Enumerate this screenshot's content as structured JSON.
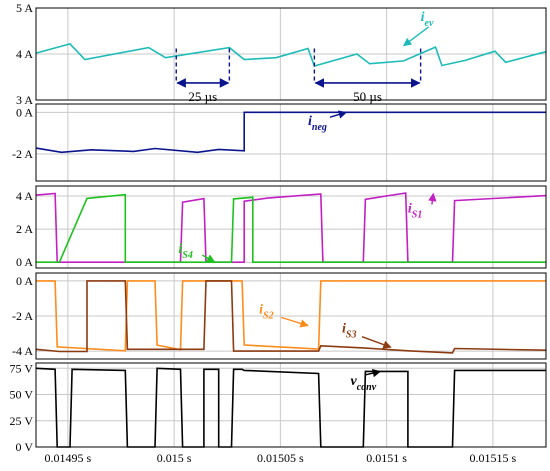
{
  "chart_data": {
    "type": "line",
    "title": "",
    "x_ticks": [
      "0.01495 s",
      "0.015 s",
      "0.01505 s",
      "0.0151 s",
      "0.01515 s"
    ],
    "x_tick_values": [
      0.01495,
      0.015,
      0.01505,
      0.0151,
      0.01515
    ],
    "xlim": [
      0.014935,
      0.015175
    ],
    "grid": true,
    "panels": [
      {
        "ylim": [
          3,
          5
        ],
        "y_ticks": [
          {
            "v": 5,
            "label": "5 A"
          },
          {
            "v": 4,
            "label": "4 A"
          },
          {
            "v": 3,
            "label": "3 A"
          }
        ],
        "series": [
          {
            "name": "i",
            "sub": "ev",
            "color": "#1dbcb8",
            "x": [
              0.014935,
              0.014951,
              0.014958,
              0.014988,
              0.014996,
              0.015026,
              0.015033,
              0.015048,
              0.015063,
              0.015066,
              0.015086,
              0.015092,
              0.015108,
              0.015123,
              0.015126,
              0.015137,
              0.015151,
              0.015156,
              0.015175
            ],
            "y": [
              4.02,
              4.22,
              3.88,
              4.14,
              3.92,
              4.14,
              3.88,
              3.92,
              4.12,
              3.74,
              4.0,
              3.79,
              3.85,
              4.15,
              3.75,
              3.86,
              4.06,
              3.82,
              4.05
            ]
          }
        ],
        "labels": [
          {
            "main": "i",
            "sub": "ev",
            "x": 0.015116,
            "y": 4.72
          }
        ],
        "intervals": [
          {
            "label": "25 µs",
            "x0": 0.015001,
            "x1": 0.015026,
            "y": 3.37
          },
          {
            "label": "50 µs",
            "x0": 0.015066,
            "x1": 0.015116,
            "y": 3.37
          }
        ]
      },
      {
        "ylim": [
          -3.3,
          0.4
        ],
        "y_ticks": [
          {
            "v": 0,
            "label": "0 A"
          },
          {
            "v": -2,
            "label": "-2 A"
          }
        ],
        "series": [
          {
            "name": "i",
            "sub": "neg",
            "color": "#0a148c",
            "x": [
              0.014935,
              0.014947,
              0.014961,
              0.014981,
              0.014991,
              0.015011,
              0.015021,
              0.015033,
              0.015033,
              0.015175
            ],
            "y": [
              -1.72,
              -1.92,
              -1.8,
              -1.88,
              -1.74,
              -1.92,
              -1.78,
              -1.85,
              0.0,
              0.0
            ]
          }
        ],
        "labels": [
          {
            "main": "i",
            "sub": "neg",
            "x": 0.015063,
            "y": -0.62
          }
        ]
      },
      {
        "ylim": [
          -0.35,
          4.6
        ],
        "y_ticks": [
          {
            "v": 4,
            "label": "4 A"
          },
          {
            "v": 2,
            "label": "2 A"
          },
          {
            "v": 0,
            "label": "0 A"
          }
        ],
        "series": [
          {
            "name": "i",
            "sub": "S1",
            "color": "#c21fc4",
            "x": [
              0.014935,
              0.014944,
              0.014945,
              0.015003,
              0.015003,
              0.015004,
              0.015014,
              0.015015,
              0.015027,
              0.015027,
              0.015033,
              0.015033,
              0.015044,
              0.015069,
              0.01507,
              0.015089,
              0.01509,
              0.015109,
              0.01511,
              0.015131,
              0.015131,
              0.015132,
              0.015175
            ],
            "y": [
              4.05,
              4.15,
              0,
              0,
              0,
              3.62,
              3.84,
              0,
              0,
              0,
              0,
              3.68,
              3.87,
              4.12,
              0,
              0,
              3.8,
              4.18,
              0,
              0,
              0,
              3.72,
              4.02
            ]
          },
          {
            "name": "i",
            "sub": "S4",
            "color": "#1ec21e",
            "x": [
              0.014935,
              0.014945,
              0.014946,
              0.014959,
              0.014977,
              0.014977,
              0.015027,
              0.015028,
              0.015037,
              0.015037,
              0.015175
            ],
            "y": [
              0,
              0,
              0,
              3.85,
              4.08,
              0,
              0,
              3.82,
              3.92,
              0,
              0
            ]
          }
        ],
        "labels": [
          {
            "main": "i",
            "sub": "S1",
            "x": 0.01511,
            "y": 3.0
          },
          {
            "main": "i",
            "sub": "S4",
            "x": 0.015002,
            "y": 0.55
          }
        ]
      },
      {
        "ylim": [
          -4.45,
          0.45
        ],
        "y_ticks": [
          {
            "v": 0,
            "label": "0 A"
          },
          {
            "v": -2,
            "label": "-2 A"
          },
          {
            "v": -4,
            "label": "-4 A"
          }
        ],
        "series": [
          {
            "name": "i",
            "sub": "S2",
            "color": "#ff8c1a",
            "x": [
              0.014935,
              0.014944,
              0.014945,
              0.014977,
              0.014978,
              0.014991,
              0.014992,
              0.015003,
              0.015004,
              0.015014,
              0.015014,
              0.015027,
              0.015028,
              0.015032,
              0.015033,
              0.015068,
              0.015069,
              0.01509,
              0.01509,
              0.01511,
              0.01511,
              0.015131,
              0.015132,
              0.015175
            ],
            "y": [
              0,
              0,
              -3.76,
              -3.98,
              0,
              0,
              -3.66,
              -3.92,
              0,
              0,
              0,
              0,
              0,
              0,
              -3.65,
              -3.88,
              0,
              0,
              0,
              0,
              0,
              0,
              0,
              0
            ]
          },
          {
            "name": "i",
            "sub": "S3",
            "color": "#8c3a10",
            "x": [
              0.014935,
              0.014946,
              0.014959,
              0.014959,
              0.014977,
              0.014978,
              0.015014,
              0.015015,
              0.015027,
              0.015028,
              0.015068,
              0.015069,
              0.015089,
              0.01511,
              0.015131,
              0.015132,
              0.015175
            ],
            "y": [
              -3.9,
              -4.02,
              -4.02,
              0,
              0,
              -3.9,
              -3.9,
              0,
              0,
              -4.0,
              -4.0,
              -3.7,
              -3.82,
              -3.98,
              -4.1,
              -3.85,
              -3.95
            ]
          }
        ],
        "labels": [
          {
            "main": "i",
            "sub": "S2",
            "x": 0.01504,
            "y": -1.85
          },
          {
            "main": "i",
            "sub": "S3",
            "x": 0.015079,
            "y": -2.95
          }
        ]
      },
      {
        "ylim": [
          0,
          80
        ],
        "y_ticks": [
          {
            "v": 75,
            "label": "75 V"
          },
          {
            "v": 50,
            "label": "50 V"
          },
          {
            "v": 25,
            "label": "25 V"
          },
          {
            "v": 0,
            "label": "0 V"
          }
        ],
        "series": [
          {
            "name": "v",
            "sub": "conv",
            "color": "#000000",
            "x": [
              0.014935,
              0.014944,
              0.014945,
              0.014951,
              0.014952,
              0.014977,
              0.014978,
              0.014991,
              0.014992,
              0.015003,
              0.015004,
              0.015014,
              0.015014,
              0.015021,
              0.015021,
              0.015027,
              0.015028,
              0.015032,
              0.015033,
              0.015068,
              0.015069,
              0.015089,
              0.01509,
              0.01511,
              0.01511,
              0.015131,
              0.015132,
              0.015175
            ],
            "y": [
              75,
              74,
              0,
              0,
              74,
              73,
              0,
              0,
              75,
              74,
              0,
              0,
              74,
              74,
              0,
              0,
              74,
              74,
              73,
              70,
              0,
              0,
              72,
              72,
              0,
              0,
              73,
              73
            ]
          }
        ],
        "labels": [
          {
            "main": "v",
            "sub": "conv",
            "x": 0.015083,
            "y": 59
          }
        ]
      }
    ]
  }
}
